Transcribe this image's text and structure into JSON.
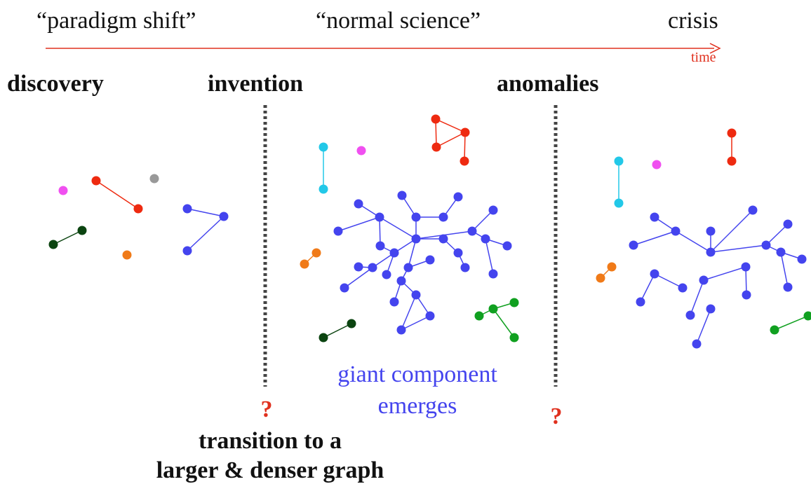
{
  "timeline": {
    "phases": [
      "“paradigm shift”",
      "“normal science”",
      "crisis"
    ],
    "axis_label": "time"
  },
  "stages": [
    "discovery",
    "invention",
    "anomalies"
  ],
  "annotations": {
    "giant_component": [
      "giant component",
      "emerges"
    ],
    "question_marks": [
      "?",
      "?"
    ],
    "transition": [
      "transition to a",
      "larger & denser graph"
    ]
  }
}
